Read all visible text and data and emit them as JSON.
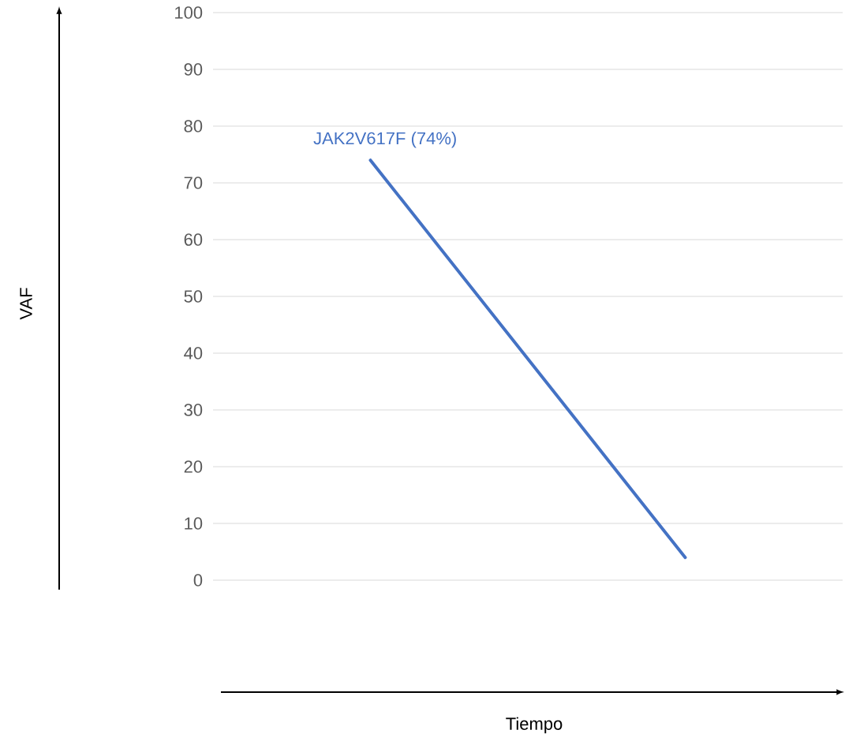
{
  "chart_data": {
    "type": "line",
    "annotations": [
      "VAF",
      "Tiempo"
    ],
    "categories": [
      null,
      null
    ],
    "values": [
      74,
      4
    ],
    "value_labels": [
      "JAK2V617F (74%)",
      null
    ],
    "color": "#4472c4",
    "ylim": [
      0,
      100
    ],
    "yticks": [
      0,
      10,
      20,
      30,
      40,
      50,
      60,
      70,
      80,
      90,
      100
    ],
    "grid": "y"
  }
}
